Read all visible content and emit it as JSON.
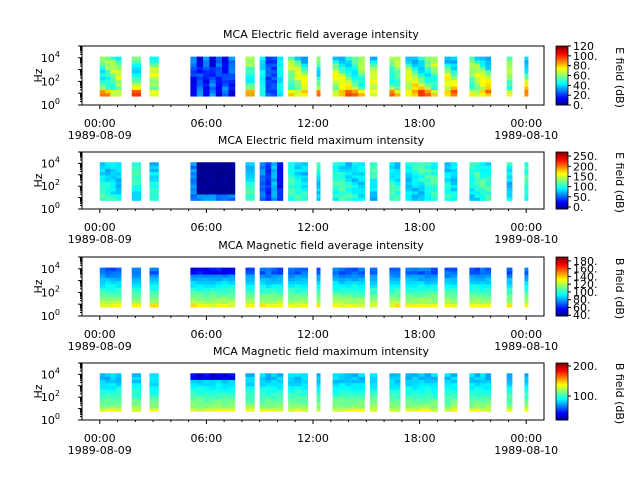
{
  "chart_data": [
    {
      "type": "heatmap",
      "title": "MCA  Electric field average intensity",
      "ylabel": "Hz",
      "y_scale": "log",
      "ylim": [
        1,
        100000
      ],
      "y_ticks": [
        {
          "exp": "0"
        },
        {
          "exp": "2"
        },
        {
          "exp": "4"
        }
      ],
      "x_ticks": [
        "00:00",
        "06:00",
        "12:00",
        "18:00",
        "00:00"
      ],
      "x_dates": [
        "1989-08-09",
        "1989-08-10"
      ],
      "xlim_hours": [
        -1,
        25
      ],
      "colorbar": {
        "label": "E field (dB)",
        "range": [
          0,
          120
        ],
        "ticks": [
          "0.",
          "20.",
          "40.",
          "60.",
          "80.",
          "100.",
          "120"
        ],
        "tick_values": [
          0,
          20,
          40,
          60,
          80,
          100,
          120
        ]
      },
      "data_intervals_hours": [
        [
          0,
          1.2
        ],
        [
          1.8,
          2.3
        ],
        [
          2.8,
          3.3
        ],
        [
          5.1,
          7.6
        ],
        [
          8.2,
          8.7
        ],
        [
          9.0,
          10.3
        ],
        [
          10.6,
          11.7
        ],
        [
          12.2,
          12.4
        ],
        [
          13.1,
          14.9
        ],
        [
          15.2,
          15.6
        ],
        [
          16.3,
          16.9
        ],
        [
          17.2,
          19.0
        ],
        [
          19.4,
          20.1
        ],
        [
          20.8,
          22.0
        ],
        [
          22.9,
          23.2
        ],
        [
          23.9,
          24.1
        ]
      ]
    },
    {
      "type": "heatmap",
      "title": "MCA  Electric field maximum intensity",
      "ylabel": "Hz",
      "y_scale": "log",
      "ylim": [
        1,
        100000
      ],
      "y_ticks": [
        {
          "exp": "0"
        },
        {
          "exp": "2"
        },
        {
          "exp": "4"
        }
      ],
      "x_ticks": [
        "00:00",
        "06:00",
        "12:00",
        "18:00",
        "00:00"
      ],
      "x_dates": [
        "1989-08-09",
        "1989-08-10"
      ],
      "xlim_hours": [
        -1,
        25
      ],
      "colorbar": {
        "label": "E field (dB)",
        "range": [
          -10,
          270
        ],
        "ticks": [
          "0.",
          "50.",
          "100.",
          "150.",
          "200.",
          "250."
        ],
        "tick_values": [
          0,
          50,
          100,
          150,
          200,
          250
        ]
      },
      "data_intervals_hours": [
        [
          0,
          1.2
        ],
        [
          1.8,
          2.3
        ],
        [
          2.8,
          3.3
        ],
        [
          5.1,
          7.6
        ],
        [
          8.2,
          8.7
        ],
        [
          9.0,
          10.3
        ],
        [
          10.6,
          11.7
        ],
        [
          12.2,
          12.4
        ],
        [
          13.1,
          14.9
        ],
        [
          15.2,
          15.6
        ],
        [
          16.3,
          16.9
        ],
        [
          17.2,
          19.0
        ],
        [
          19.4,
          20.1
        ],
        [
          20.8,
          22.0
        ],
        [
          22.9,
          23.2
        ],
        [
          23.9,
          24.1
        ]
      ]
    },
    {
      "type": "heatmap",
      "title": "MCA  Magnetic field average intensity",
      "ylabel": "Hz",
      "y_scale": "log",
      "ylim": [
        1,
        100000
      ],
      "y_ticks": [
        {
          "exp": "0"
        },
        {
          "exp": "2"
        },
        {
          "exp": "4"
        }
      ],
      "x_ticks": [
        "00:00",
        "06:00",
        "12:00",
        "18:00",
        "00:00"
      ],
      "x_dates": [
        "1989-08-09",
        "1989-08-10"
      ],
      "xlim_hours": [
        -1,
        25
      ],
      "colorbar": {
        "label": "B field (dB)",
        "range": [
          38,
          190
        ],
        "ticks": [
          "40.",
          "60.",
          "80.",
          "100.",
          "120.",
          "140.",
          "160.",
          "180."
        ],
        "tick_values": [
          40,
          60,
          80,
          100,
          120,
          140,
          160,
          180
        ]
      },
      "data_intervals_hours": [
        [
          0,
          1.2
        ],
        [
          1.8,
          2.3
        ],
        [
          2.8,
          3.3
        ],
        [
          5.1,
          7.6
        ],
        [
          8.2,
          8.7
        ],
        [
          9.0,
          10.3
        ],
        [
          10.6,
          11.7
        ],
        [
          12.2,
          12.4
        ],
        [
          13.1,
          14.9
        ],
        [
          15.2,
          15.6
        ],
        [
          16.3,
          16.9
        ],
        [
          17.2,
          19.0
        ],
        [
          19.4,
          20.1
        ],
        [
          20.8,
          22.0
        ],
        [
          22.9,
          23.2
        ],
        [
          23.9,
          24.1
        ]
      ]
    },
    {
      "type": "heatmap",
      "title": "MCA  Magnetic field maximum intensity",
      "ylabel": "Hz",
      "y_scale": "log",
      "ylim": [
        1,
        100000
      ],
      "y_ticks": [
        {
          "exp": "0"
        },
        {
          "exp": "2"
        },
        {
          "exp": "4"
        }
      ],
      "x_ticks": [
        "00:00",
        "06:00",
        "12:00",
        "18:00",
        "00:00"
      ],
      "x_dates": [
        "1989-08-09",
        "1989-08-10"
      ],
      "xlim_hours": [
        -1,
        25
      ],
      "colorbar": {
        "label": "B field (dB)",
        "range": [
          20,
          210
        ],
        "ticks": [
          "100.",
          "200."
        ],
        "tick_values": [
          100,
          200
        ]
      },
      "data_intervals_hours": [
        [
          0,
          1.2
        ],
        [
          1.8,
          2.3
        ],
        [
          2.8,
          3.3
        ],
        [
          5.1,
          7.6
        ],
        [
          8.2,
          8.7
        ],
        [
          9.0,
          10.3
        ],
        [
          10.6,
          11.7
        ],
        [
          12.2,
          12.4
        ],
        [
          13.1,
          14.9
        ],
        [
          15.2,
          15.6
        ],
        [
          16.3,
          16.9
        ],
        [
          17.2,
          19.0
        ],
        [
          19.4,
          20.1
        ],
        [
          20.8,
          22.0
        ],
        [
          22.9,
          23.2
        ],
        [
          23.9,
          24.1
        ]
      ]
    }
  ]
}
